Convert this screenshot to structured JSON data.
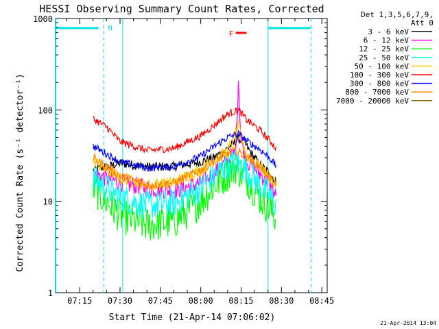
{
  "chart_data": {
    "type": "line",
    "title": "HESSI Observing Summary Count Rates, Corrected",
    "xlabel": "Start Time (21-Apr-14 07:06:02)",
    "ylabel": "Corrected Count Rate (s⁻¹ detector⁻¹)",
    "x_ticks": [
      "07:15",
      "07:30",
      "07:45",
      "08:00",
      "08:15",
      "08:30",
      "08:45"
    ],
    "y_ticks": [
      "1",
      "10",
      "100",
      "1000"
    ],
    "x_range": [
      "07:06:02",
      "08:47"
    ],
    "ylim": [
      1,
      1000
    ],
    "y_scale": "log",
    "legend_header": [
      "Det 1,3,5,6,7,9,",
      "Att 0"
    ],
    "legend_position": "outside-right",
    "series": [
      {
        "name": "3 - 6 keV",
        "color": "#000000",
        "key": [
          [
            "07:20",
            22
          ],
          [
            "07:30",
            26
          ],
          [
            "07:40",
            24
          ],
          [
            "07:50",
            24
          ],
          [
            "08:00",
            27
          ],
          [
            "08:05",
            30
          ],
          [
            "08:10",
            38
          ],
          [
            "08:14",
            48
          ],
          [
            "08:16",
            45
          ],
          [
            "08:18",
            36
          ],
          [
            "08:22",
            25
          ],
          [
            "08:26",
            20
          ],
          [
            "08:28",
            16
          ]
        ]
      },
      {
        "name": "6 - 12 keV",
        "color": "#ff00ff",
        "key": [
          [
            "07:20",
            20
          ],
          [
            "07:30",
            16
          ],
          [
            "07:40",
            14
          ],
          [
            "07:50",
            13
          ],
          [
            "08:00",
            16
          ],
          [
            "08:05",
            20
          ],
          [
            "08:10",
            28
          ],
          [
            "08:13",
            35
          ],
          [
            "08:14",
            220
          ],
          [
            "08:15",
            45
          ],
          [
            "08:17",
            28
          ],
          [
            "08:22",
            20
          ],
          [
            "08:26",
            15
          ],
          [
            "08:28",
            11
          ]
        ]
      },
      {
        "name": "12 - 25 keV",
        "color": "#00ff00",
        "key": [
          [
            "07:20",
            14
          ],
          [
            "07:25",
            10
          ],
          [
            "07:30",
            7
          ],
          [
            "07:40",
            5.5
          ],
          [
            "07:50",
            6
          ],
          [
            "08:00",
            10
          ],
          [
            "08:05",
            15
          ],
          [
            "08:10",
            20
          ],
          [
            "08:13",
            24
          ],
          [
            "08:17",
            18
          ],
          [
            "08:22",
            11
          ],
          [
            "08:26",
            8
          ],
          [
            "08:28",
            6.5
          ]
        ]
      },
      {
        "name": "25 - 50 keV",
        "color": "#00ffff",
        "key": [
          [
            "07:20",
            18
          ],
          [
            "07:25",
            14
          ],
          [
            "07:30",
            11
          ],
          [
            "07:40",
            9
          ],
          [
            "07:50",
            9.5
          ],
          [
            "08:00",
            14
          ],
          [
            "08:05",
            19
          ],
          [
            "08:10",
            25
          ],
          [
            "08:13",
            27
          ],
          [
            "08:17",
            22
          ],
          [
            "08:22",
            15
          ],
          [
            "08:26",
            11
          ],
          [
            "08:28",
            9
          ]
        ]
      },
      {
        "name": "50 - 100 keV",
        "color": "#ffcc00",
        "key": [
          [
            "07:20",
            28
          ],
          [
            "07:25",
            22
          ],
          [
            "07:30",
            18
          ],
          [
            "07:40",
            15
          ],
          [
            "07:50",
            16
          ],
          [
            "08:00",
            22
          ],
          [
            "08:05",
            28
          ],
          [
            "08:10",
            35
          ],
          [
            "08:14",
            65
          ],
          [
            "08:17",
            32
          ],
          [
            "08:22",
            24
          ],
          [
            "08:26",
            18
          ],
          [
            "08:28",
            15
          ]
        ]
      },
      {
        "name": "100 - 300 keV",
        "color": "#ff0000",
        "key": [
          [
            "07:20",
            80
          ],
          [
            "07:25",
            65
          ],
          [
            "07:30",
            45
          ],
          [
            "07:40",
            36
          ],
          [
            "07:50",
            38
          ],
          [
            "08:00",
            52
          ],
          [
            "08:05",
            68
          ],
          [
            "08:10",
            90
          ],
          [
            "08:14",
            100
          ],
          [
            "08:17",
            78
          ],
          [
            "08:22",
            60
          ],
          [
            "08:26",
            45
          ],
          [
            "08:28",
            38
          ]
        ]
      },
      {
        "name": "300 - 800 keV",
        "color": "#0000ff",
        "key": [
          [
            "07:20",
            40
          ],
          [
            "07:25",
            33
          ],
          [
            "07:30",
            27
          ],
          [
            "07:40",
            23
          ],
          [
            "07:50",
            24
          ],
          [
            "08:00",
            31
          ],
          [
            "08:05",
            40
          ],
          [
            "08:10",
            50
          ],
          [
            "08:14",
            55
          ],
          [
            "08:17",
            46
          ],
          [
            "08:22",
            37
          ],
          [
            "08:26",
            29
          ],
          [
            "08:28",
            24
          ]
        ]
      },
      {
        "name": "800 - 7000 keV",
        "color": "#ff8800",
        "key": [
          [
            "07:20",
            30
          ],
          [
            "07:25",
            24
          ],
          [
            "07:30",
            19
          ],
          [
            "07:40",
            15
          ],
          [
            "07:50",
            16
          ],
          [
            "08:00",
            22
          ],
          [
            "08:05",
            28
          ],
          [
            "08:10",
            33
          ],
          [
            "08:13",
            36
          ],
          [
            "08:17",
            31
          ],
          [
            "08:22",
            24
          ],
          [
            "08:26",
            18
          ],
          [
            "08:28",
            14
          ]
        ]
      },
      {
        "name": "7000 - 20000 keV",
        "color": "#886600",
        "key": []
      }
    ],
    "flags": [
      {
        "label": "N",
        "color": "#00e0e0"
      },
      {
        "label": "F",
        "color": "#ff0000"
      }
    ],
    "timestamp": "21-Apr-2014 13:04"
  }
}
